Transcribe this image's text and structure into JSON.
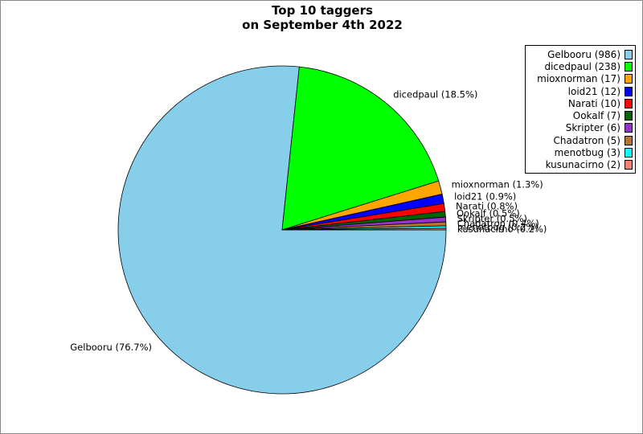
{
  "chart_data": {
    "type": "pie",
    "title": [
      "Top 10 taggers",
      "on September 4th 2022"
    ],
    "slices": [
      {
        "name": "Gelbooru",
        "value": 986,
        "legend": "Gelbooru (986)",
        "label": "Gelbooru (76.7%)",
        "color": "#87ceeb"
      },
      {
        "name": "dicedpaul",
        "value": 238,
        "legend": "dicedpaul (238)",
        "label": "dicedpaul (18.5%)",
        "color": "#00ff00"
      },
      {
        "name": "mioxnorman",
        "value": 17,
        "legend": "mioxnorman (17)",
        "label": "mioxnorman (1.3%)",
        "color": "#ffa500"
      },
      {
        "name": "loid21",
        "value": 12,
        "legend": "loid21 (12)",
        "label": "loid21 (0.9%)",
        "color": "#0000ff"
      },
      {
        "name": "Narati",
        "value": 10,
        "legend": "Narati (10)",
        "label": "Narati (0.8%)",
        "color": "#ff0000"
      },
      {
        "name": "Ookalf",
        "value": 7,
        "legend": "Ookalf (7)",
        "label": "Ookalf (0.5%)",
        "color": "#006400"
      },
      {
        "name": "Skripter",
        "value": 6,
        "legend": "Skripter (6)",
        "label": "Skripter (0.5%)",
        "color": "#9932cc"
      },
      {
        "name": "Chadatron",
        "value": 5,
        "legend": "Chadatron (5)",
        "label": "Chadatron (0.4%)",
        "color": "#b8732e"
      },
      {
        "name": "menotbug",
        "value": 3,
        "legend": "menotbug (3)",
        "label": "menotbug (0.2%)",
        "color": "#00ffff"
      },
      {
        "name": "kusunacirno",
        "value": 2,
        "legend": "kusunacirno (2)",
        "label": "kusunacirno (0.2%)",
        "color": "#f08070"
      }
    ],
    "start_angle": "3 o'clock",
    "direction": "clockwise",
    "legend_position": "top-right"
  }
}
